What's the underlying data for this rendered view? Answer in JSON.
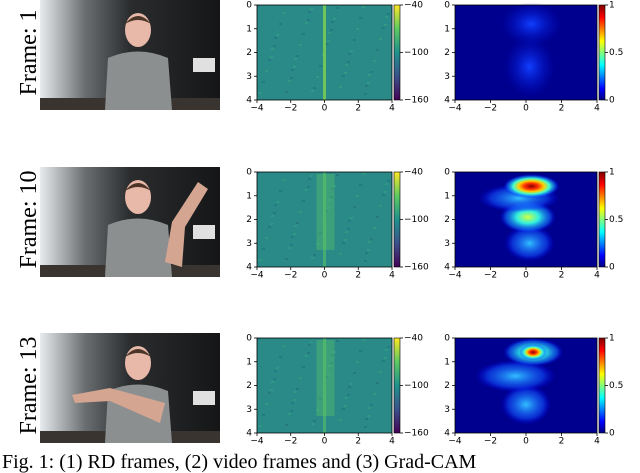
{
  "frames": [
    {
      "label": "Frame: 1"
    },
    {
      "label": "Frame: 10"
    },
    {
      "label": "Frame: 13"
    }
  ],
  "rd_plot": {
    "xlim": [
      -4,
      4
    ],
    "ylim": [
      0,
      4
    ],
    "xticks": [
      {
        "value": -4,
        "label": "−4"
      },
      {
        "value": -2,
        "label": "−2"
      },
      0,
      2,
      4
    ],
    "yticks": [
      0,
      1,
      2,
      3,
      4
    ],
    "colorbar_lim": [
      -160,
      -40
    ],
    "colorbar_ticks": [
      {
        "value": -40,
        "label": "−40"
      },
      {
        "value": -100,
        "label": "−100"
      },
      {
        "value": -160,
        "label": "−160"
      }
    ]
  },
  "gradcam_plot": {
    "xlim": [
      -4,
      4
    ],
    "ylim": [
      0,
      4
    ],
    "xticks": [
      {
        "value": -4,
        "label": "−4"
      },
      {
        "value": -2,
        "label": "−2"
      },
      0,
      2,
      4
    ],
    "yticks": [
      0,
      1,
      2,
      3,
      4
    ],
    "colorbar_lim": [
      0,
      1
    ],
    "colorbar_ticks": [
      1,
      0.5,
      0
    ]
  },
  "caption": "Fig. 1: (1) RD frames, (2) video frames and (3) Grad-CAM"
}
